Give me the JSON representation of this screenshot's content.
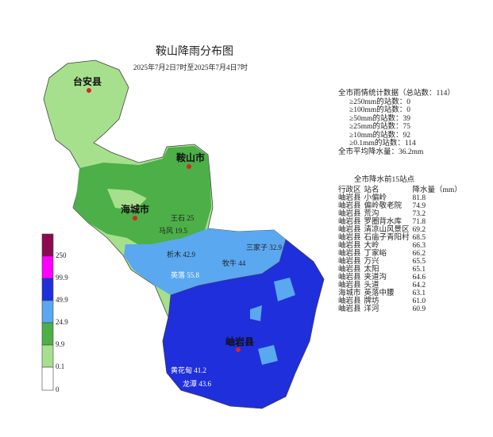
{
  "header": {
    "title": "鞍山降雨分布图",
    "subtitle": "2025年7月2日7时至2025年7月4日7时"
  },
  "legend": [
    "250",
    "99.9",
    "49.9",
    "24.9",
    "9.9",
    "0.1",
    "0"
  ],
  "map_labels": [
    "台安县",
    "鞍山市",
    "海城市",
    "岫岩县"
  ],
  "stations": [
    "王石 25",
    "三家子 32.9",
    "牧牛 44",
    "马风 19.5",
    "析木 42.9",
    "英落 55.8",
    "黄花甸 41.2",
    "龙潭 43.6"
  ],
  "stats": {
    "heading": "全市雨情统计数据（总站数：114）",
    "lines": [
      "≥250mm的站数：0",
      "≥100mm的站数：0",
      "≥50mm的站数：39",
      "≥25mm的站数：75",
      "≥10mm的站数：92",
      "≥0.1mm的站数：114"
    ],
    "average": "全市平均降水量：36.2mm"
  },
  "table": {
    "caption": "全市降水前15站点",
    "header": [
      "行政区",
      "站名",
      "降水量（mm）"
    ],
    "rows": [
      [
        "岫岩县",
        "小偏岭",
        "81.8"
      ],
      [
        "岫岩县",
        "偏岭敬老院",
        "74.9"
      ],
      [
        "岫岩县",
        "荒沟",
        "73.2"
      ],
      [
        "岫岩县",
        "罗圈背水库",
        "71.8"
      ],
      [
        "岫岩县",
        "清凉山风景区",
        "69.2"
      ],
      [
        "岫岩县",
        "石庙子青阳村",
        "68.5"
      ],
      [
        "岫岩县",
        "大岭",
        "66.3"
      ],
      [
        "岫岩县",
        "丁家峪",
        "66.2"
      ],
      [
        "岫岩县",
        "万兴",
        "65.5"
      ],
      [
        "岫岩县",
        "太阳",
        "65.1"
      ],
      [
        "岫岩县",
        "夹道沟",
        "64.6"
      ],
      [
        "岫岩县",
        "头道",
        "64.2"
      ],
      [
        "海城市",
        "英落中腰",
        "63.1"
      ],
      [
        "岫岩县",
        "牌坊",
        "61.0"
      ],
      [
        "岫岩县",
        "洋河",
        "60.9"
      ]
    ]
  }
}
